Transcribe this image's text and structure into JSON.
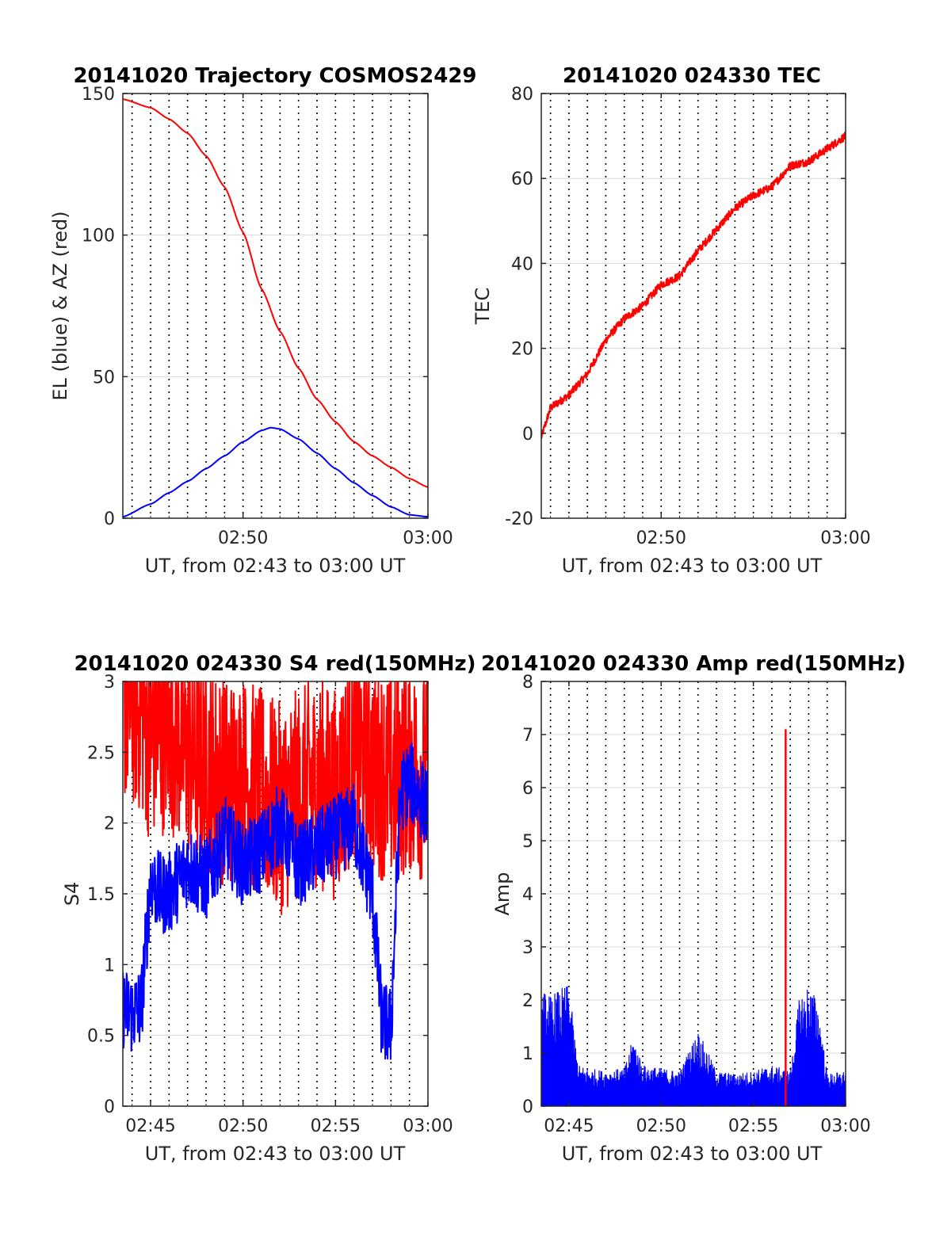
{
  "figure": {
    "colors": {
      "red": "#ff0000",
      "blue": "#0000ff",
      "grid": "#d9d9d9",
      "vlines": "#000000",
      "axis": "#262626"
    }
  },
  "chart_data": [
    {
      "type": "line",
      "title": "20141020 Trajectory COSMOS2429",
      "xlabel": "UT, from 02:43 to 03:00 UT",
      "ylabel": "EL (blue) & AZ (red)",
      "xlim": [
        "02:43:30",
        "03:00:00"
      ],
      "ylim": [
        0,
        150
      ],
      "yticks": [
        0,
        50,
        100,
        150
      ],
      "xticks": [
        "02:50",
        "03:00"
      ],
      "grid": true,
      "series": [
        {
          "color": "#ff0000",
          "x": [
            "02:43:30",
            "02:45:00",
            "02:46:00",
            "02:47:00",
            "02:48:00",
            "02:49:00",
            "02:50:00",
            "02:51:00",
            "02:52:00",
            "02:53:00",
            "02:54:00",
            "02:55:00",
            "02:56:00",
            "02:57:00",
            "02:58:00",
            "02:59:00",
            "03:00:00"
          ],
          "y": [
            148,
            145,
            141,
            136,
            128,
            117,
            101,
            81,
            66,
            53,
            42,
            34,
            27,
            22,
            18,
            14,
            11
          ]
        },
        {
          "color": "#0000ff",
          "x": [
            "02:43:30",
            "02:45:00",
            "02:46:00",
            "02:47:00",
            "02:48:00",
            "02:49:00",
            "02:50:00",
            "02:51:00",
            "02:51:30",
            "02:52:00",
            "02:53:00",
            "02:54:00",
            "02:55:00",
            "02:56:00",
            "02:57:00",
            "02:58:00",
            "02:59:00",
            "03:00:00"
          ],
          "y": [
            0.5,
            5,
            9,
            13,
            17.5,
            22,
            27,
            31,
            32,
            31.5,
            28,
            23,
            17.5,
            12.5,
            8,
            4,
            1.2,
            0.5
          ]
        }
      ],
      "vlines": [
        "02:44:00",
        "02:45:00",
        "02:46:00",
        "02:47:00",
        "02:48:00",
        "02:49:00",
        "02:50:00",
        "02:51:00",
        "02:52:00",
        "02:53:00",
        "02:54:00",
        "02:55:00",
        "02:56:00",
        "02:57:00",
        "02:58:00",
        "02:59:00"
      ]
    },
    {
      "type": "line",
      "title": "20141020 024330 TEC",
      "xlabel": "UT, from 02:43 to 03:00 UT",
      "ylabel": "TEC",
      "xlim": [
        "02:43:30",
        "03:00:00"
      ],
      "ylim": [
        -20,
        80
      ],
      "yticks": [
        -20,
        0,
        20,
        40,
        60,
        80
      ],
      "xticks": [
        "02:50",
        "03:00"
      ],
      "grid": true,
      "series": [
        {
          "color": "#ff0000",
          "noise": 0.8,
          "x": [
            "02:43:30",
            "02:44:00",
            "02:45:00",
            "02:46:00",
            "02:47:00",
            "02:48:00",
            "02:49:00",
            "02:50:00",
            "02:51:00",
            "02:52:00",
            "02:53:00",
            "02:54:00",
            "02:55:00",
            "02:56:00",
            "02:57:00",
            "02:58:00",
            "02:59:00",
            "03:00:00"
          ],
          "y": [
            -1,
            6,
            9,
            14,
            22,
            27,
            30,
            35,
            37,
            43,
            48,
            53,
            56,
            58,
            63,
            64,
            67,
            70
          ]
        }
      ],
      "vlines": [
        "02:44:00",
        "02:45:00",
        "02:46:00",
        "02:47:00",
        "02:48:00",
        "02:49:00",
        "02:50:00",
        "02:51:00",
        "02:52:00",
        "02:53:00",
        "02:54:00",
        "02:55:00",
        "02:56:00",
        "02:57:00",
        "02:58:00",
        "02:59:00"
      ]
    },
    {
      "type": "line",
      "title": "20141020 024330 S4 red(150MHz)",
      "xlabel": "UT, from 02:43 to 03:00 UT",
      "ylabel": "S4",
      "xlim": [
        "02:43:30",
        "03:00:00"
      ],
      "ylim": [
        0,
        3
      ],
      "yticks": [
        0,
        0.5,
        1,
        1.5,
        2,
        2.5,
        3
      ],
      "xticks": [
        "02:45",
        "02:50",
        "02:55",
        "03:00"
      ],
      "grid": true,
      "series": [
        {
          "color": "#ff0000",
          "noise": 0.9,
          "x": [
            "02:43:30",
            "02:44:30",
            "02:45:00",
            "02:46:00",
            "02:47:00",
            "02:48:00",
            "02:49:00",
            "02:50:00",
            "02:51:00",
            "02:52:00",
            "02:53:00",
            "02:54:00",
            "02:55:00",
            "02:56:00",
            "02:57:00",
            "02:58:00",
            "02:59:00",
            "03:00:00"
          ],
          "y": [
            2.9,
            2.8,
            2.6,
            2.7,
            2.5,
            2.4,
            2.3,
            2.3,
            2.2,
            2.1,
            2.2,
            2.3,
            2.2,
            2.5,
            2.4,
            2.3,
            2.4,
            2.3
          ]
        },
        {
          "color": "#0000ff",
          "noise": 0.35,
          "x": [
            "02:43:30",
            "02:44:00",
            "02:44:30",
            "02:45:00",
            "02:45:30",
            "02:46:00",
            "02:47:00",
            "02:48:00",
            "02:49:00",
            "02:50:00",
            "02:51:00",
            "02:52:00",
            "02:53:00",
            "02:54:00",
            "02:55:00",
            "02:56:00",
            "02:57:00",
            "02:57:30",
            "02:58:00",
            "02:58:30",
            "02:59:00",
            "03:00:00"
          ],
          "y": [
            0.7,
            0.65,
            0.7,
            1.6,
            1.5,
            1.5,
            1.7,
            1.6,
            1.9,
            1.7,
            1.8,
            2.0,
            1.7,
            1.8,
            1.9,
            2.0,
            1.5,
            0.6,
            0.55,
            2.2,
            2.3,
            2.1
          ]
        }
      ],
      "vlines": [
        "02:44:00",
        "02:45:00",
        "02:46:00",
        "02:47:00",
        "02:48:00",
        "02:49:00",
        "02:50:00",
        "02:51:00",
        "02:52:00",
        "02:53:00",
        "02:54:00",
        "02:55:00",
        "02:56:00",
        "02:57:00",
        "02:58:00",
        "02:59:00"
      ]
    },
    {
      "type": "line",
      "title": "20141020 024330 Amp red(150MHz)",
      "xlabel": "UT, from 02:43 to 03:00 UT",
      "ylabel": "Amp",
      "xlim": [
        "02:43:30",
        "03:00:00"
      ],
      "ylim": [
        0,
        8
      ],
      "yticks": [
        0,
        1,
        2,
        3,
        4,
        5,
        6,
        7,
        8
      ],
      "xticks": [
        "02:45",
        "02:50",
        "02:55",
        "03:00"
      ],
      "grid": true,
      "series": [
        {
          "color": "#0000ff",
          "x": [
            "02:43:30",
            "02:44:00",
            "02:45:00",
            "02:45:30",
            "02:46:00",
            "02:47:00",
            "02:48:00",
            "02:48:30",
            "02:49:00",
            "02:50:00",
            "02:51:00",
            "02:52:00",
            "02:53:00",
            "02:54:00",
            "02:55:00",
            "02:56:00",
            "02:57:00",
            "02:57:30",
            "02:58:00",
            "02:58:30",
            "02:59:00",
            "03:00:00"
          ],
          "y": [
            2.0,
            1.9,
            2.1,
            0.7,
            0.65,
            0.6,
            0.65,
            1.2,
            0.7,
            0.65,
            0.6,
            1.3,
            0.6,
            0.55,
            0.6,
            0.7,
            0.6,
            1.9,
            2.1,
            1.8,
            0.55,
            0.6
          ]
        },
        {
          "color": "#ff0000",
          "x": [
            "02:56:45"
          ],
          "y": [
            7.1
          ]
        }
      ],
      "vlines": [
        "02:44:00",
        "02:45:00",
        "02:46:00",
        "02:47:00",
        "02:48:00",
        "02:49:00",
        "02:50:00",
        "02:51:00",
        "02:52:00",
        "02:53:00",
        "02:54:00",
        "02:55:00",
        "02:56:00",
        "02:57:00",
        "02:58:00",
        "02:59:00"
      ]
    }
  ]
}
